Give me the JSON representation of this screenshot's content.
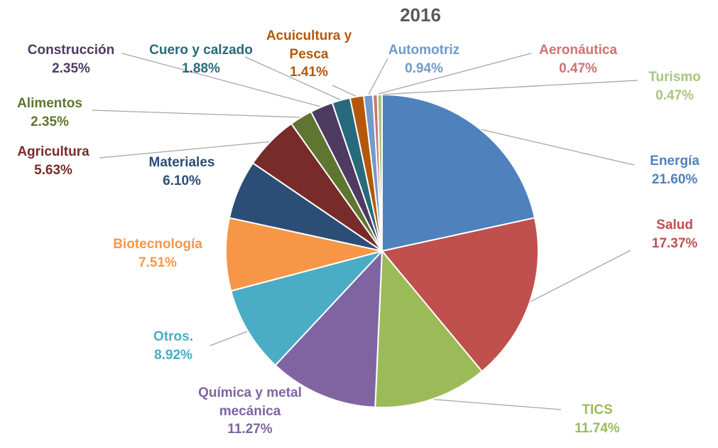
{
  "chart_data": {
    "type": "pie",
    "title": "2016",
    "categories": [
      "Energía",
      "Salud",
      "TICS",
      "Química y metal mecánica",
      "Otros.",
      "Biotecnología",
      "Materiales",
      "Agricultura",
      "Alimentos",
      "Construcción",
      "Cuero y calzado",
      "Acuicultura y Pesca",
      "Automotriz",
      "Aeronáutica",
      "Turismo"
    ],
    "values": [
      21.6,
      17.37,
      11.74,
      11.27,
      8.92,
      7.51,
      6.1,
      5.63,
      2.35,
      2.35,
      1.88,
      1.41,
      0.94,
      0.47,
      0.47
    ],
    "value_labels": [
      "21.60%",
      "17.37%",
      "11.74%",
      "11.27%",
      "8.92%",
      "7.51%",
      "6.10%",
      "5.63%",
      "2.35%",
      "2.35%",
      "1.88%",
      "1.41%",
      "0.94%",
      "0.47%",
      "0.47%"
    ],
    "colors": [
      "#4f81bd",
      "#c0504d",
      "#9bbb59",
      "#8064a2",
      "#4bacc6",
      "#f79646",
      "#2c4d75",
      "#772c2a",
      "#5f7530",
      "#4d3b62",
      "#276a7c",
      "#b65708",
      "#729aca",
      "#cd7371",
      "#a9c47f"
    ]
  }
}
